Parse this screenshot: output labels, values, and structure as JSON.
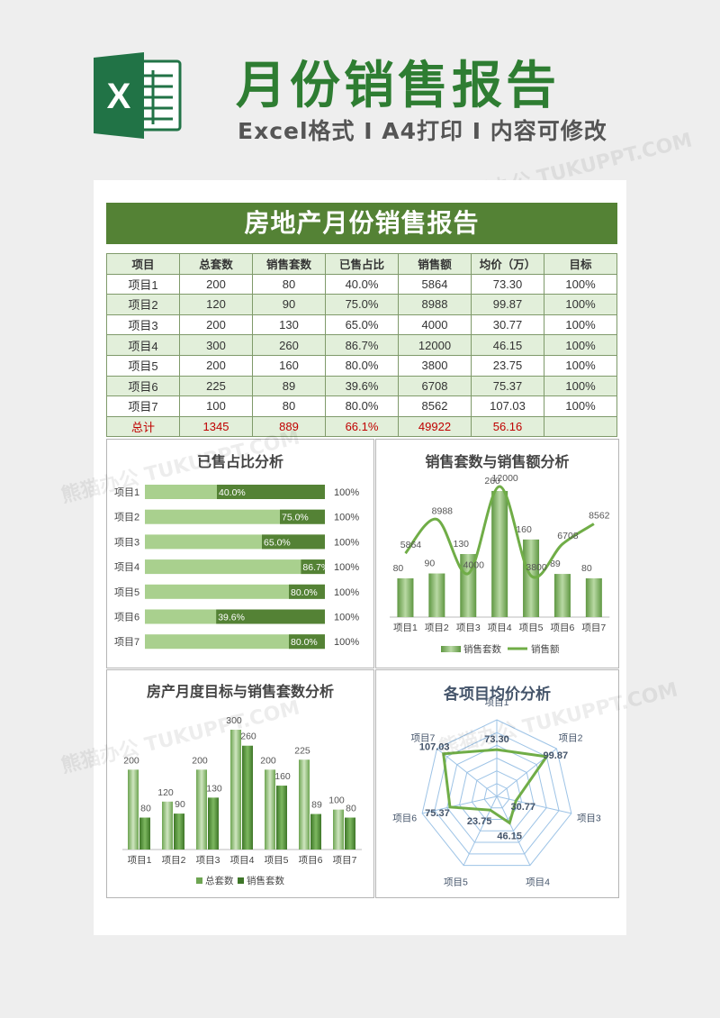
{
  "banner": {
    "logo_letter": "X",
    "title": "月份销售报告",
    "subtitle": "Excel格式 I A4打印 I 内容可修改",
    "watermark": "熊猫办公 TUKUPPT.COM"
  },
  "sheet": {
    "title": "房地产月份销售报告",
    "columns": [
      "项目",
      "总套数",
      "销售套数",
      "已售占比",
      "销售额",
      "均价（万）",
      "目标"
    ],
    "rows": [
      [
        "项目1",
        "200",
        "80",
        "40.0%",
        "5864",
        "73.30",
        "100%"
      ],
      [
        "项目2",
        "120",
        "90",
        "75.0%",
        "8988",
        "99.87",
        "100%"
      ],
      [
        "项目3",
        "200",
        "130",
        "65.0%",
        "4000",
        "30.77",
        "100%"
      ],
      [
        "项目4",
        "300",
        "260",
        "86.7%",
        "12000",
        "46.15",
        "100%"
      ],
      [
        "项目5",
        "200",
        "160",
        "80.0%",
        "3800",
        "23.75",
        "100%"
      ],
      [
        "项目6",
        "225",
        "89",
        "39.6%",
        "6708",
        "75.37",
        "100%"
      ],
      [
        "项目7",
        "100",
        "80",
        "80.0%",
        "8562",
        "107.03",
        "100%"
      ]
    ],
    "total": [
      "总计",
      "1345",
      "889",
      "66.1%",
      "49922",
      "56.16",
      ""
    ]
  },
  "colors": {
    "dark_green": "#548235",
    "light_green": "#a9d08e",
    "line_green": "#70ad47",
    "radar_grid": "#9dc3e6",
    "total_red": "#c00000"
  },
  "chart_data": [
    {
      "type": "bar",
      "title": "已售占比分析",
      "categories": [
        "项目1",
        "项目2",
        "项目3",
        "项目4",
        "项目5",
        "项目6",
        "项目7"
      ],
      "series": [
        {
          "values": [
            40.0,
            75.0,
            65.0,
            86.7,
            80.0,
            39.6,
            80.0
          ]
        }
      ],
      "value_labels": [
        "40.0%",
        "75.0%",
        "65.0%",
        "86.7%",
        "80.0%",
        "39.6%",
        "80.0%"
      ],
      "target_labels": [
        "100%",
        "100%",
        "100%",
        "100%",
        "100%",
        "100%",
        "100%"
      ],
      "orientation": "horizontal",
      "xlim": [
        0,
        100
      ]
    },
    {
      "type": "bar",
      "title": "销售套数与销售额分析",
      "categories": [
        "项目1",
        "项目2",
        "项目3",
        "项目4",
        "项目5",
        "项目6",
        "项目7"
      ],
      "series": [
        {
          "name": "销售套数",
          "type": "bar",
          "values": [
            80,
            90,
            130,
            260,
            160,
            89,
            80
          ]
        },
        {
          "name": "销售额",
          "type": "line",
          "values": [
            5864,
            8988,
            4000,
            12000,
            3800,
            6708,
            8562
          ]
        }
      ],
      "legend": "bottom"
    },
    {
      "type": "bar",
      "title": "房产月度目标与销售套数分析",
      "categories": [
        "项目1",
        "项目2",
        "项目3",
        "项目4",
        "项目5",
        "项目6",
        "项目7"
      ],
      "series": [
        {
          "name": "总套数",
          "values": [
            200,
            120,
            200,
            300,
            200,
            225,
            100
          ]
        },
        {
          "name": "销售套数",
          "values": [
            80,
            90,
            130,
            260,
            160,
            89,
            80
          ]
        }
      ],
      "legend": "bottom"
    },
    {
      "type": "radar",
      "title": "各项目均价分析",
      "categories": [
        "项目1",
        "项目2",
        "项目3",
        "项目4",
        "项目5",
        "项目6",
        "项目7"
      ],
      "series": [
        {
          "values": [
            73.3,
            99.87,
            30.77,
            46.15,
            23.75,
            75.37,
            107.03
          ]
        }
      ],
      "value_labels": [
        "73.30",
        "99.87",
        "30.77",
        "46.15",
        "23.75",
        "75.37",
        "107.03"
      ]
    }
  ]
}
